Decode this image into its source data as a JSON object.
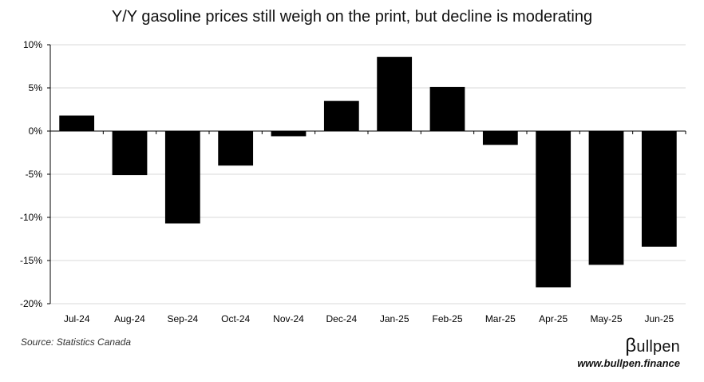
{
  "chart_data": {
    "type": "bar",
    "title": "Y/Y gasoline prices still weigh on the print, but decline is moderating",
    "categories": [
      "Jul-24",
      "Aug-24",
      "Sep-24",
      "Oct-24",
      "Nov-24",
      "Dec-24",
      "Jan-25",
      "Feb-25",
      "Mar-25",
      "Apr-25",
      "May-25",
      "Jun-25"
    ],
    "values": [
      1.8,
      -5.1,
      -10.7,
      -4.0,
      -0.6,
      3.5,
      8.6,
      5.1,
      -1.6,
      -18.1,
      -15.5,
      -13.4
    ],
    "ylim": [
      -20,
      10
    ],
    "yticks": [
      10,
      5,
      0,
      -5,
      -10,
      -15,
      -20
    ],
    "ytick_labels": [
      "10%",
      "5%",
      "0%",
      "-5%",
      "-10%",
      "-15%",
      "-20%"
    ],
    "gridlines": true,
    "bar_color": "#000000",
    "grid_color": "#d9d9d9"
  },
  "footer": {
    "source": "Source: Statistics Canada",
    "brand_symbol": "β",
    "brand_rest": "ullpen",
    "website": "www.bullpen.finance"
  }
}
